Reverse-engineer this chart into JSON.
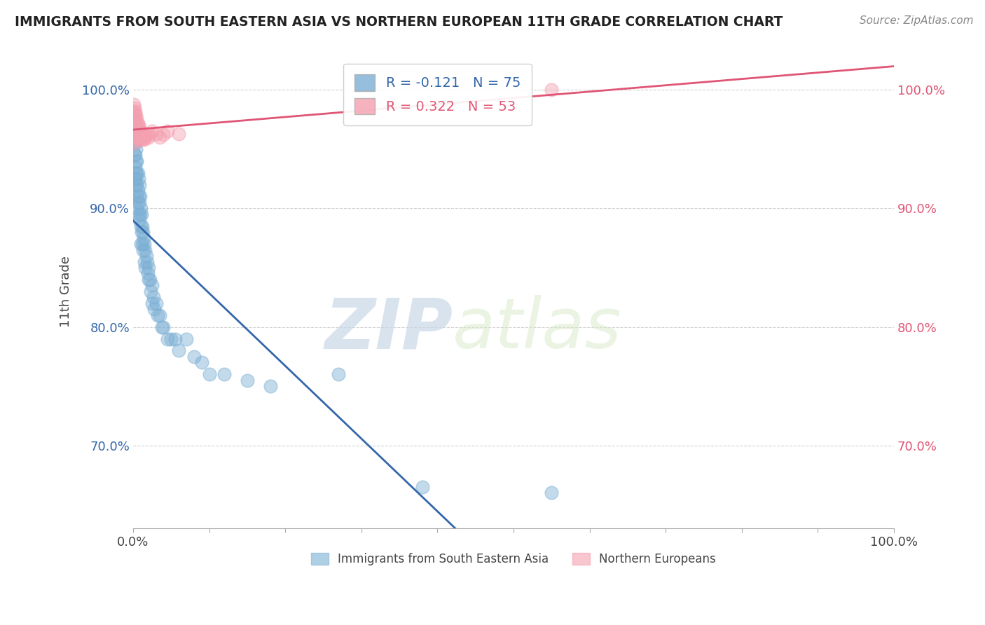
{
  "title": "IMMIGRANTS FROM SOUTH EASTERN ASIA VS NORTHERN EUROPEAN 11TH GRADE CORRELATION CHART",
  "source": "Source: ZipAtlas.com",
  "ylabel": "11th Grade",
  "xlabel": "",
  "xlim": [
    0.0,
    1.0
  ],
  "ylim": [
    0.63,
    1.03
  ],
  "yticks": [
    0.7,
    0.8,
    0.9,
    1.0
  ],
  "ytick_labels": [
    "70.0%",
    "80.0%",
    "90.0%",
    "100.0%"
  ],
  "xticks": [
    0.0,
    1.0
  ],
  "xtick_labels": [
    "0.0%",
    "100.0%"
  ],
  "blue_R": -0.121,
  "blue_N": 75,
  "pink_R": 0.322,
  "pink_N": 53,
  "blue_color": "#7BAFD4",
  "pink_color": "#F4A0B0",
  "blue_line_color": "#3366AA",
  "pink_line_color": "#E05575",
  "watermark_zip": "ZIP",
  "watermark_atlas": "atlas",
  "legend_label_blue": "Immigrants from South Eastern Asia",
  "legend_label_pink": "Northern Europeans",
  "blue_x": [
    0.001,
    0.001,
    0.002,
    0.002,
    0.002,
    0.002,
    0.003,
    0.003,
    0.003,
    0.003,
    0.003,
    0.004,
    0.004,
    0.004,
    0.004,
    0.005,
    0.005,
    0.005,
    0.005,
    0.005,
    0.006,
    0.006,
    0.006,
    0.007,
    0.007,
    0.007,
    0.008,
    0.008,
    0.008,
    0.009,
    0.009,
    0.01,
    0.01,
    0.01,
    0.011,
    0.011,
    0.012,
    0.012,
    0.013,
    0.013,
    0.014,
    0.015,
    0.015,
    0.016,
    0.016,
    0.017,
    0.018,
    0.019,
    0.02,
    0.02,
    0.022,
    0.023,
    0.025,
    0.025,
    0.027,
    0.028,
    0.03,
    0.032,
    0.035,
    0.038,
    0.04,
    0.045,
    0.05,
    0.055,
    0.06,
    0.07,
    0.08,
    0.09,
    0.1,
    0.12,
    0.15,
    0.18,
    0.27,
    0.38,
    0.55
  ],
  "blue_y": [
    0.965,
    0.975,
    0.96,
    0.97,
    0.955,
    0.945,
    0.955,
    0.945,
    0.96,
    0.935,
    0.925,
    0.95,
    0.94,
    0.93,
    0.92,
    0.94,
    0.93,
    0.92,
    0.91,
    0.9,
    0.93,
    0.915,
    0.905,
    0.925,
    0.91,
    0.895,
    0.92,
    0.905,
    0.89,
    0.91,
    0.895,
    0.9,
    0.885,
    0.87,
    0.895,
    0.88,
    0.885,
    0.87,
    0.88,
    0.865,
    0.875,
    0.87,
    0.855,
    0.865,
    0.85,
    0.86,
    0.855,
    0.845,
    0.85,
    0.84,
    0.84,
    0.83,
    0.835,
    0.82,
    0.825,
    0.815,
    0.82,
    0.81,
    0.81,
    0.8,
    0.8,
    0.79,
    0.79,
    0.79,
    0.78,
    0.79,
    0.775,
    0.77,
    0.76,
    0.76,
    0.755,
    0.75,
    0.76,
    0.665,
    0.66
  ],
  "pink_x": [
    0.001,
    0.001,
    0.001,
    0.001,
    0.002,
    0.002,
    0.002,
    0.002,
    0.002,
    0.002,
    0.002,
    0.003,
    0.003,
    0.003,
    0.003,
    0.003,
    0.004,
    0.004,
    0.004,
    0.004,
    0.004,
    0.005,
    0.005,
    0.005,
    0.005,
    0.006,
    0.006,
    0.006,
    0.007,
    0.007,
    0.007,
    0.008,
    0.008,
    0.009,
    0.009,
    0.01,
    0.01,
    0.011,
    0.012,
    0.013,
    0.014,
    0.015,
    0.016,
    0.018,
    0.02,
    0.022,
    0.025,
    0.03,
    0.035,
    0.04,
    0.045,
    0.06,
    0.55
  ],
  "pink_y": [
    0.988,
    0.982,
    0.978,
    0.972,
    0.985,
    0.98,
    0.975,
    0.97,
    0.965,
    0.96,
    0.955,
    0.982,
    0.978,
    0.972,
    0.968,
    0.963,
    0.978,
    0.973,
    0.968,
    0.963,
    0.958,
    0.975,
    0.97,
    0.965,
    0.96,
    0.972,
    0.967,
    0.962,
    0.97,
    0.965,
    0.96,
    0.968,
    0.963,
    0.965,
    0.96,
    0.963,
    0.958,
    0.96,
    0.958,
    0.96,
    0.962,
    0.958,
    0.96,
    0.963,
    0.96,
    0.962,
    0.965,
    0.963,
    0.96,
    0.962,
    0.965,
    0.963,
    1.0
  ]
}
